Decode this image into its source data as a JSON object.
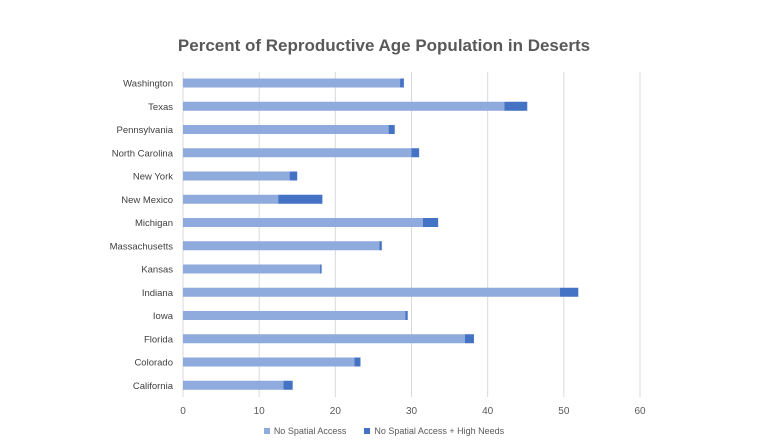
{
  "chart_data": {
    "type": "bar",
    "orientation": "horizontal",
    "stacked": true,
    "title": "Percent of Reproductive Age Population in Deserts",
    "categories": [
      "Washington",
      "Texas",
      "Pennsylvania",
      "North Carolina",
      "New York",
      "New Mexico",
      "Michigan",
      "Massachusetts",
      "Kansas",
      "Indiana",
      "Iowa",
      "Florida",
      "Colorado",
      "California"
    ],
    "series": [
      {
        "name": "No Spatial Access",
        "color": "#8faadc",
        "values": [
          28.5,
          42.2,
          27.0,
          30.0,
          14.0,
          12.5,
          31.5,
          25.8,
          18.0,
          49.5,
          29.2,
          37.0,
          22.5,
          13.2
        ]
      },
      {
        "name": "No Spatial Access + High Needs",
        "color": "#4472c4",
        "values": [
          0.5,
          3.0,
          0.8,
          1.0,
          1.0,
          5.8,
          2.0,
          0.3,
          0.2,
          2.4,
          0.3,
          1.2,
          0.8,
          1.2
        ]
      }
    ],
    "xlim": [
      0,
      60
    ],
    "xticks": [
      "0",
      "10",
      "20",
      "30",
      "40",
      "50",
      "60"
    ],
    "grid": true,
    "legend_position": "bottom"
  }
}
